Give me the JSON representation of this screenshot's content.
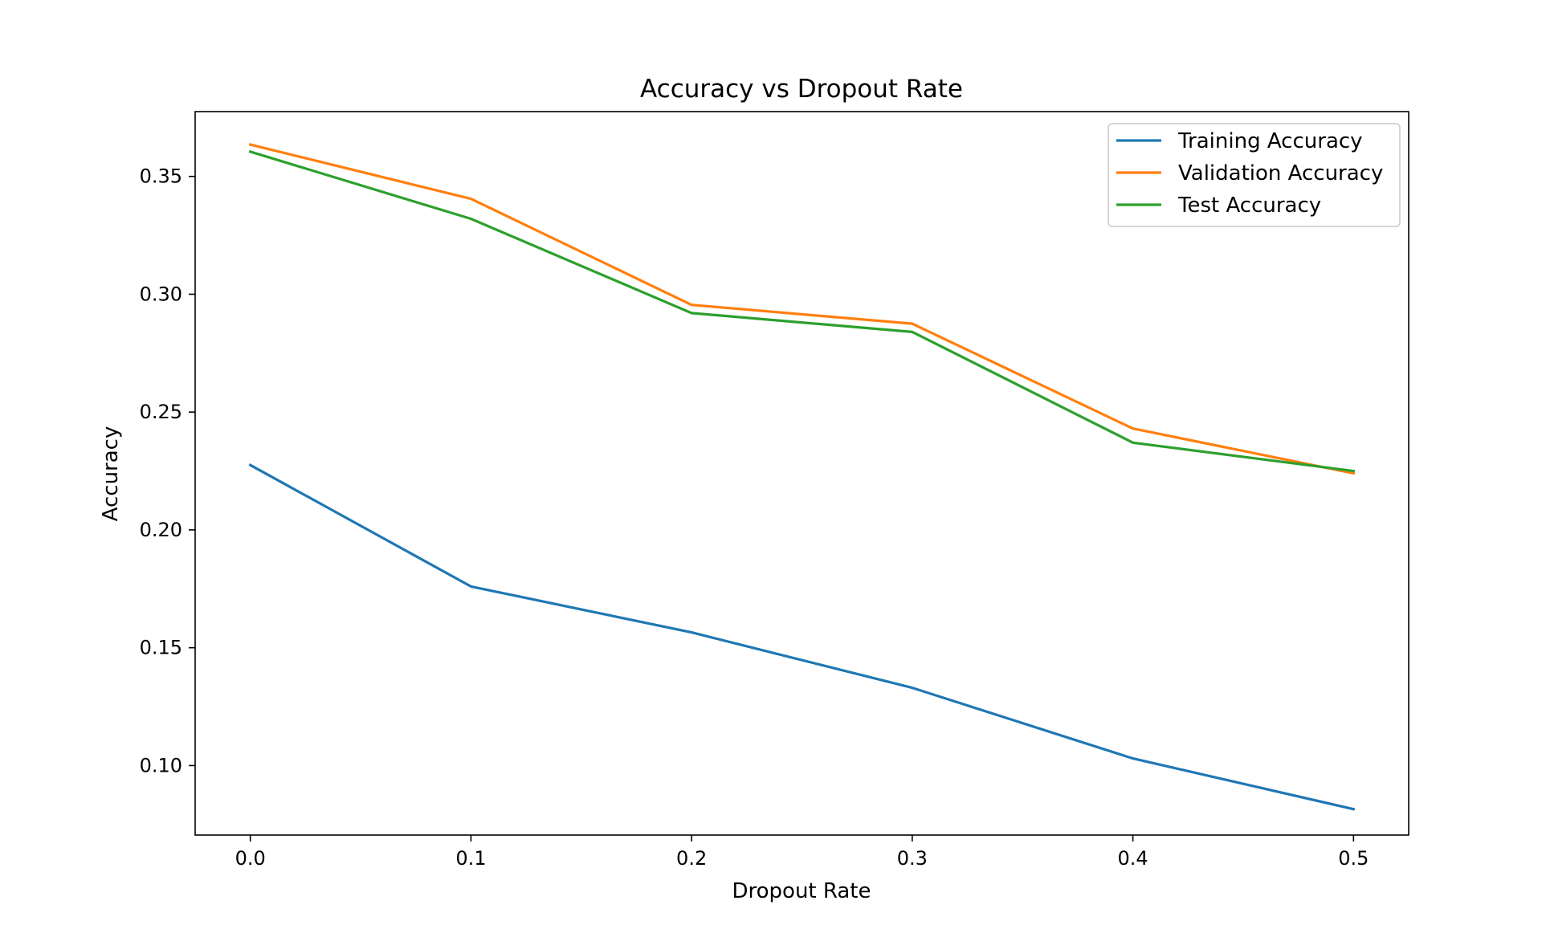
{
  "chart_data": {
    "type": "line",
    "title": "Accuracy vs Dropout Rate",
    "xlabel": "Dropout Rate",
    "ylabel": "Accuracy",
    "x": [
      0.0,
      0.1,
      0.2,
      0.3,
      0.4,
      0.5
    ],
    "xlim": [
      -0.025,
      0.525
    ],
    "ylim": [
      0.0705,
      0.3775
    ],
    "xticks": [
      "0.0",
      "0.1",
      "0.2",
      "0.3",
      "0.4",
      "0.5"
    ],
    "yticks": [
      "0.10",
      "0.15",
      "0.20",
      "0.25",
      "0.30",
      "0.35"
    ],
    "grid": false,
    "legend_position": "top-right",
    "series": [
      {
        "name": "Training Accuracy",
        "color": "#1f77b4",
        "values": [
          0.2275,
          0.176,
          0.1565,
          0.133,
          0.103,
          0.0815
        ]
      },
      {
        "name": "Validation Accuracy",
        "color": "#ff7f0e",
        "values": [
          0.3635,
          0.3405,
          0.2955,
          0.2875,
          0.243,
          0.224
        ]
      },
      {
        "name": "Test Accuracy",
        "color": "#2ca02c",
        "values": [
          0.3605,
          0.332,
          0.292,
          0.284,
          0.237,
          0.225
        ]
      }
    ]
  }
}
